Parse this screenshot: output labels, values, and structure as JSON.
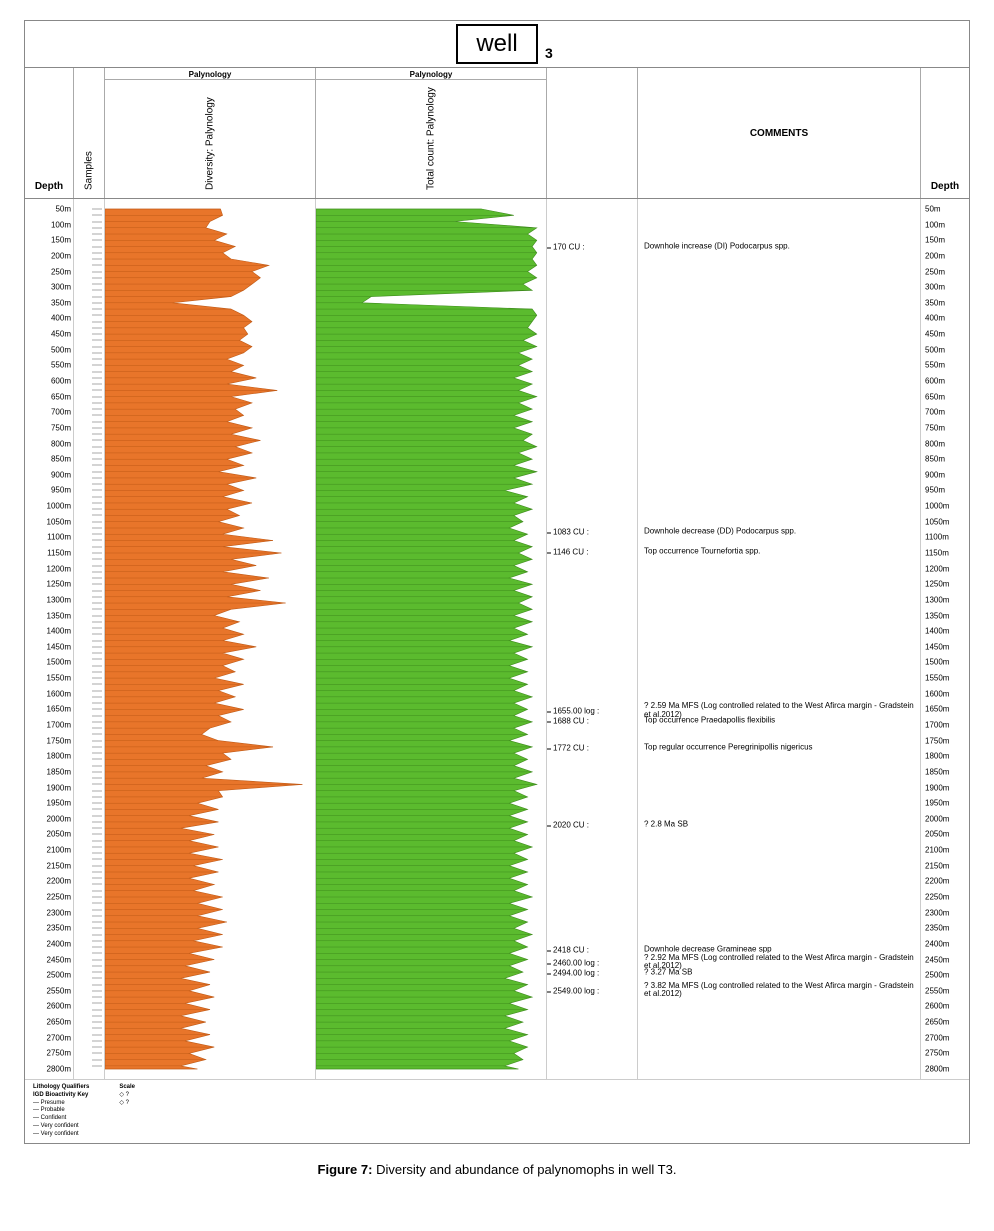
{
  "title": "well",
  "title_sub": "3",
  "caption_bold": "Figure 7:",
  "caption_rest": " Diversity and abundance of palynomophs in well T3.",
  "columns": {
    "depth_l": "Depth",
    "samples": "Samples",
    "diversity_top": "Palynology",
    "diversity": "Diversity: Palynology",
    "total_top": "Palynology",
    "total": "Total count: Palynology",
    "comments": "COMMENTS",
    "depth_r": "Depth"
  },
  "colors": {
    "diversity": "#e8752a",
    "total": "#5bbb2e",
    "diversity_stroke": "#c05a16",
    "total_stroke": "#3e8c1d",
    "background": "#ffffff"
  },
  "depth_range": {
    "min": 50,
    "max": 2800,
    "step": 50
  },
  "diversity": {
    "xmax": 100,
    "series": [
      {
        "d": 50,
        "v": 55
      },
      {
        "d": 70,
        "v": 56
      },
      {
        "d": 90,
        "v": 50
      },
      {
        "d": 110,
        "v": 48
      },
      {
        "d": 130,
        "v": 58
      },
      {
        "d": 150,
        "v": 52
      },
      {
        "d": 170,
        "v": 62
      },
      {
        "d": 190,
        "v": 56
      },
      {
        "d": 210,
        "v": 60
      },
      {
        "d": 230,
        "v": 78
      },
      {
        "d": 250,
        "v": 70
      },
      {
        "d": 270,
        "v": 74
      },
      {
        "d": 290,
        "v": 70
      },
      {
        "d": 310,
        "v": 66
      },
      {
        "d": 330,
        "v": 60
      },
      {
        "d": 350,
        "v": 32
      },
      {
        "d": 370,
        "v": 60
      },
      {
        "d": 390,
        "v": 66
      },
      {
        "d": 410,
        "v": 70
      },
      {
        "d": 430,
        "v": 66
      },
      {
        "d": 450,
        "v": 68
      },
      {
        "d": 470,
        "v": 64
      },
      {
        "d": 490,
        "v": 70
      },
      {
        "d": 510,
        "v": 66
      },
      {
        "d": 530,
        "v": 58
      },
      {
        "d": 550,
        "v": 66
      },
      {
        "d": 570,
        "v": 60
      },
      {
        "d": 590,
        "v": 72
      },
      {
        "d": 610,
        "v": 58
      },
      {
        "d": 630,
        "v": 82
      },
      {
        "d": 650,
        "v": 60
      },
      {
        "d": 670,
        "v": 70
      },
      {
        "d": 690,
        "v": 62
      },
      {
        "d": 710,
        "v": 66
      },
      {
        "d": 730,
        "v": 58
      },
      {
        "d": 750,
        "v": 70
      },
      {
        "d": 770,
        "v": 60
      },
      {
        "d": 790,
        "v": 74
      },
      {
        "d": 810,
        "v": 62
      },
      {
        "d": 830,
        "v": 70
      },
      {
        "d": 850,
        "v": 58
      },
      {
        "d": 870,
        "v": 66
      },
      {
        "d": 890,
        "v": 54
      },
      {
        "d": 910,
        "v": 72
      },
      {
        "d": 930,
        "v": 58
      },
      {
        "d": 950,
        "v": 66
      },
      {
        "d": 970,
        "v": 56
      },
      {
        "d": 990,
        "v": 70
      },
      {
        "d": 1010,
        "v": 58
      },
      {
        "d": 1030,
        "v": 64
      },
      {
        "d": 1050,
        "v": 54
      },
      {
        "d": 1070,
        "v": 66
      },
      {
        "d": 1090,
        "v": 56
      },
      {
        "d": 1110,
        "v": 80
      },
      {
        "d": 1130,
        "v": 56
      },
      {
        "d": 1150,
        "v": 84
      },
      {
        "d": 1170,
        "v": 60
      },
      {
        "d": 1190,
        "v": 72
      },
      {
        "d": 1210,
        "v": 56
      },
      {
        "d": 1230,
        "v": 78
      },
      {
        "d": 1250,
        "v": 60
      },
      {
        "d": 1270,
        "v": 74
      },
      {
        "d": 1290,
        "v": 58
      },
      {
        "d": 1310,
        "v": 86
      },
      {
        "d": 1330,
        "v": 60
      },
      {
        "d": 1350,
        "v": 52
      },
      {
        "d": 1370,
        "v": 64
      },
      {
        "d": 1390,
        "v": 56
      },
      {
        "d": 1410,
        "v": 66
      },
      {
        "d": 1430,
        "v": 56
      },
      {
        "d": 1450,
        "v": 72
      },
      {
        "d": 1470,
        "v": 56
      },
      {
        "d": 1490,
        "v": 66
      },
      {
        "d": 1510,
        "v": 56
      },
      {
        "d": 1530,
        "v": 62
      },
      {
        "d": 1550,
        "v": 52
      },
      {
        "d": 1570,
        "v": 66
      },
      {
        "d": 1590,
        "v": 54
      },
      {
        "d": 1610,
        "v": 62
      },
      {
        "d": 1630,
        "v": 52
      },
      {
        "d": 1650,
        "v": 66
      },
      {
        "d": 1670,
        "v": 54
      },
      {
        "d": 1690,
        "v": 60
      },
      {
        "d": 1710,
        "v": 50
      },
      {
        "d": 1730,
        "v": 46
      },
      {
        "d": 1750,
        "v": 54
      },
      {
        "d": 1770,
        "v": 80
      },
      {
        "d": 1790,
        "v": 56
      },
      {
        "d": 1810,
        "v": 60
      },
      {
        "d": 1830,
        "v": 48
      },
      {
        "d": 1850,
        "v": 56
      },
      {
        "d": 1870,
        "v": 46
      },
      {
        "d": 1890,
        "v": 94
      },
      {
        "d": 1910,
        "v": 54
      },
      {
        "d": 1930,
        "v": 56
      },
      {
        "d": 1950,
        "v": 44
      },
      {
        "d": 1970,
        "v": 54
      },
      {
        "d": 1990,
        "v": 40
      },
      {
        "d": 2010,
        "v": 54
      },
      {
        "d": 2030,
        "v": 36
      },
      {
        "d": 2050,
        "v": 52
      },
      {
        "d": 2070,
        "v": 40
      },
      {
        "d": 2090,
        "v": 54
      },
      {
        "d": 2110,
        "v": 40
      },
      {
        "d": 2130,
        "v": 56
      },
      {
        "d": 2150,
        "v": 42
      },
      {
        "d": 2170,
        "v": 54
      },
      {
        "d": 2190,
        "v": 40
      },
      {
        "d": 2210,
        "v": 52
      },
      {
        "d": 2230,
        "v": 42
      },
      {
        "d": 2250,
        "v": 56
      },
      {
        "d": 2270,
        "v": 44
      },
      {
        "d": 2290,
        "v": 56
      },
      {
        "d": 2310,
        "v": 44
      },
      {
        "d": 2330,
        "v": 58
      },
      {
        "d": 2350,
        "v": 44
      },
      {
        "d": 2370,
        "v": 56
      },
      {
        "d": 2390,
        "v": 42
      },
      {
        "d": 2410,
        "v": 56
      },
      {
        "d": 2430,
        "v": 40
      },
      {
        "d": 2450,
        "v": 52
      },
      {
        "d": 2470,
        "v": 38
      },
      {
        "d": 2490,
        "v": 50
      },
      {
        "d": 2510,
        "v": 36
      },
      {
        "d": 2530,
        "v": 50
      },
      {
        "d": 2550,
        "v": 40
      },
      {
        "d": 2570,
        "v": 52
      },
      {
        "d": 2590,
        "v": 38
      },
      {
        "d": 2610,
        "v": 50
      },
      {
        "d": 2630,
        "v": 36
      },
      {
        "d": 2650,
        "v": 48
      },
      {
        "d": 2670,
        "v": 36
      },
      {
        "d": 2690,
        "v": 50
      },
      {
        "d": 2710,
        "v": 38
      },
      {
        "d": 2730,
        "v": 52
      },
      {
        "d": 2750,
        "v": 40
      },
      {
        "d": 2770,
        "v": 48
      },
      {
        "d": 2790,
        "v": 36
      },
      {
        "d": 2800,
        "v": 44
      }
    ]
  },
  "total": {
    "xmax": 100,
    "series": [
      {
        "d": 50,
        "v": 72
      },
      {
        "d": 70,
        "v": 86
      },
      {
        "d": 90,
        "v": 60
      },
      {
        "d": 110,
        "v": 96
      },
      {
        "d": 130,
        "v": 92
      },
      {
        "d": 150,
        "v": 96
      },
      {
        "d": 170,
        "v": 94
      },
      {
        "d": 190,
        "v": 96
      },
      {
        "d": 210,
        "v": 94
      },
      {
        "d": 230,
        "v": 96
      },
      {
        "d": 250,
        "v": 92
      },
      {
        "d": 270,
        "v": 96
      },
      {
        "d": 290,
        "v": 90
      },
      {
        "d": 310,
        "v": 94
      },
      {
        "d": 330,
        "v": 24
      },
      {
        "d": 350,
        "v": 20
      },
      {
        "d": 370,
        "v": 94
      },
      {
        "d": 390,
        "v": 96
      },
      {
        "d": 410,
        "v": 94
      },
      {
        "d": 430,
        "v": 92
      },
      {
        "d": 450,
        "v": 96
      },
      {
        "d": 470,
        "v": 90
      },
      {
        "d": 490,
        "v": 96
      },
      {
        "d": 510,
        "v": 88
      },
      {
        "d": 530,
        "v": 94
      },
      {
        "d": 550,
        "v": 88
      },
      {
        "d": 570,
        "v": 94
      },
      {
        "d": 590,
        "v": 86
      },
      {
        "d": 610,
        "v": 94
      },
      {
        "d": 630,
        "v": 88
      },
      {
        "d": 650,
        "v": 96
      },
      {
        "d": 670,
        "v": 88
      },
      {
        "d": 690,
        "v": 94
      },
      {
        "d": 710,
        "v": 86
      },
      {
        "d": 730,
        "v": 94
      },
      {
        "d": 750,
        "v": 86
      },
      {
        "d": 770,
        "v": 94
      },
      {
        "d": 790,
        "v": 90
      },
      {
        "d": 810,
        "v": 96
      },
      {
        "d": 830,
        "v": 88
      },
      {
        "d": 850,
        "v": 94
      },
      {
        "d": 870,
        "v": 86
      },
      {
        "d": 890,
        "v": 96
      },
      {
        "d": 910,
        "v": 86
      },
      {
        "d": 930,
        "v": 94
      },
      {
        "d": 950,
        "v": 82
      },
      {
        "d": 970,
        "v": 92
      },
      {
        "d": 990,
        "v": 86
      },
      {
        "d": 1010,
        "v": 94
      },
      {
        "d": 1030,
        "v": 86
      },
      {
        "d": 1050,
        "v": 90
      },
      {
        "d": 1070,
        "v": 84
      },
      {
        "d": 1090,
        "v": 92
      },
      {
        "d": 1110,
        "v": 86
      },
      {
        "d": 1130,
        "v": 94
      },
      {
        "d": 1150,
        "v": 88
      },
      {
        "d": 1170,
        "v": 94
      },
      {
        "d": 1190,
        "v": 86
      },
      {
        "d": 1210,
        "v": 92
      },
      {
        "d": 1230,
        "v": 84
      },
      {
        "d": 1250,
        "v": 94
      },
      {
        "d": 1270,
        "v": 86
      },
      {
        "d": 1290,
        "v": 94
      },
      {
        "d": 1310,
        "v": 88
      },
      {
        "d": 1330,
        "v": 94
      },
      {
        "d": 1350,
        "v": 86
      },
      {
        "d": 1370,
        "v": 94
      },
      {
        "d": 1390,
        "v": 86
      },
      {
        "d": 1410,
        "v": 92
      },
      {
        "d": 1430,
        "v": 84
      },
      {
        "d": 1450,
        "v": 94
      },
      {
        "d": 1470,
        "v": 86
      },
      {
        "d": 1490,
        "v": 92
      },
      {
        "d": 1510,
        "v": 84
      },
      {
        "d": 1530,
        "v": 92
      },
      {
        "d": 1550,
        "v": 84
      },
      {
        "d": 1570,
        "v": 92
      },
      {
        "d": 1590,
        "v": 86
      },
      {
        "d": 1610,
        "v": 94
      },
      {
        "d": 1630,
        "v": 86
      },
      {
        "d": 1650,
        "v": 92
      },
      {
        "d": 1670,
        "v": 86
      },
      {
        "d": 1690,
        "v": 94
      },
      {
        "d": 1710,
        "v": 86
      },
      {
        "d": 1730,
        "v": 92
      },
      {
        "d": 1750,
        "v": 84
      },
      {
        "d": 1770,
        "v": 94
      },
      {
        "d": 1790,
        "v": 86
      },
      {
        "d": 1810,
        "v": 92
      },
      {
        "d": 1830,
        "v": 86
      },
      {
        "d": 1850,
        "v": 94
      },
      {
        "d": 1870,
        "v": 86
      },
      {
        "d": 1890,
        "v": 96
      },
      {
        "d": 1910,
        "v": 86
      },
      {
        "d": 1930,
        "v": 92
      },
      {
        "d": 1950,
        "v": 84
      },
      {
        "d": 1970,
        "v": 92
      },
      {
        "d": 1990,
        "v": 84
      },
      {
        "d": 2010,
        "v": 92
      },
      {
        "d": 2030,
        "v": 84
      },
      {
        "d": 2050,
        "v": 92
      },
      {
        "d": 2070,
        "v": 86
      },
      {
        "d": 2090,
        "v": 94
      },
      {
        "d": 2110,
        "v": 86
      },
      {
        "d": 2130,
        "v": 92
      },
      {
        "d": 2150,
        "v": 84
      },
      {
        "d": 2170,
        "v": 92
      },
      {
        "d": 2190,
        "v": 84
      },
      {
        "d": 2210,
        "v": 92
      },
      {
        "d": 2230,
        "v": 86
      },
      {
        "d": 2250,
        "v": 94
      },
      {
        "d": 2270,
        "v": 84
      },
      {
        "d": 2290,
        "v": 92
      },
      {
        "d": 2310,
        "v": 84
      },
      {
        "d": 2330,
        "v": 92
      },
      {
        "d": 2350,
        "v": 86
      },
      {
        "d": 2370,
        "v": 94
      },
      {
        "d": 2390,
        "v": 86
      },
      {
        "d": 2410,
        "v": 92
      },
      {
        "d": 2430,
        "v": 84
      },
      {
        "d": 2450,
        "v": 92
      },
      {
        "d": 2470,
        "v": 84
      },
      {
        "d": 2490,
        "v": 90
      },
      {
        "d": 2510,
        "v": 82
      },
      {
        "d": 2530,
        "v": 92
      },
      {
        "d": 2550,
        "v": 86
      },
      {
        "d": 2570,
        "v": 94
      },
      {
        "d": 2590,
        "v": 84
      },
      {
        "d": 2610,
        "v": 92
      },
      {
        "d": 2630,
        "v": 82
      },
      {
        "d": 2650,
        "v": 90
      },
      {
        "d": 2670,
        "v": 82
      },
      {
        "d": 2690,
        "v": 92
      },
      {
        "d": 2710,
        "v": 84
      },
      {
        "d": 2730,
        "v": 92
      },
      {
        "d": 2750,
        "v": 86
      },
      {
        "d": 2770,
        "v": 90
      },
      {
        "d": 2790,
        "v": 82
      },
      {
        "d": 2800,
        "v": 88
      }
    ]
  },
  "events": [
    {
      "depth": 170,
      "label": "170 CU :",
      "comment": "Downhole increase (DI) Podocarpus spp."
    },
    {
      "depth": 1083,
      "label": "1083 CU :",
      "comment": "Downhole decrease (DD) Podocarpus spp."
    },
    {
      "depth": 1146,
      "label": "1146 CU :",
      "comment": "Top occurrence Tournefortia spp."
    },
    {
      "depth": 1655,
      "label": "1655.00 log :",
      "comment": "? 2.59 Ma MFS (Log controlled related to the West Afirca margin - Gradstein et al.2012)"
    },
    {
      "depth": 1688,
      "label": "1688 CU :",
      "comment": "Top occurrence Praedapollis flexibilis"
    },
    {
      "depth": 1772,
      "label": "1772 CU :",
      "comment": "Top regular occurrence Peregrinipollis nigericus"
    },
    {
      "depth": 2020,
      "label": "2020 CU :",
      "comment": "? 2.8 Ma SB"
    },
    {
      "depth": 2418,
      "label": "2418 CU :",
      "comment": "Downhole decrease Gramineae spp"
    },
    {
      "depth": 2460,
      "label": "2460.00 log :",
      "comment": "? 2.92 Ma MFS (Log controlled related to the West Afirca margin - Gradstein et al.2012)"
    },
    {
      "depth": 2494,
      "label": "2494.00 log :",
      "comment": "? 3.27 Ma SB"
    },
    {
      "depth": 2549,
      "label": "2549.00 log :",
      "comment": "? 3.82 Ma MFS (Log controlled related to the West Afirca margin - Gradstein et al.2012)"
    }
  ],
  "legend": {
    "h1": "Lithology Qualifiers",
    "h2": "IGD Bioactivity Key",
    "items1": [
      "Presume",
      "Probable",
      "Confident",
      "Very confident",
      "Very confident"
    ],
    "h3": "Scale",
    "items2": [
      "?",
      "?"
    ]
  }
}
